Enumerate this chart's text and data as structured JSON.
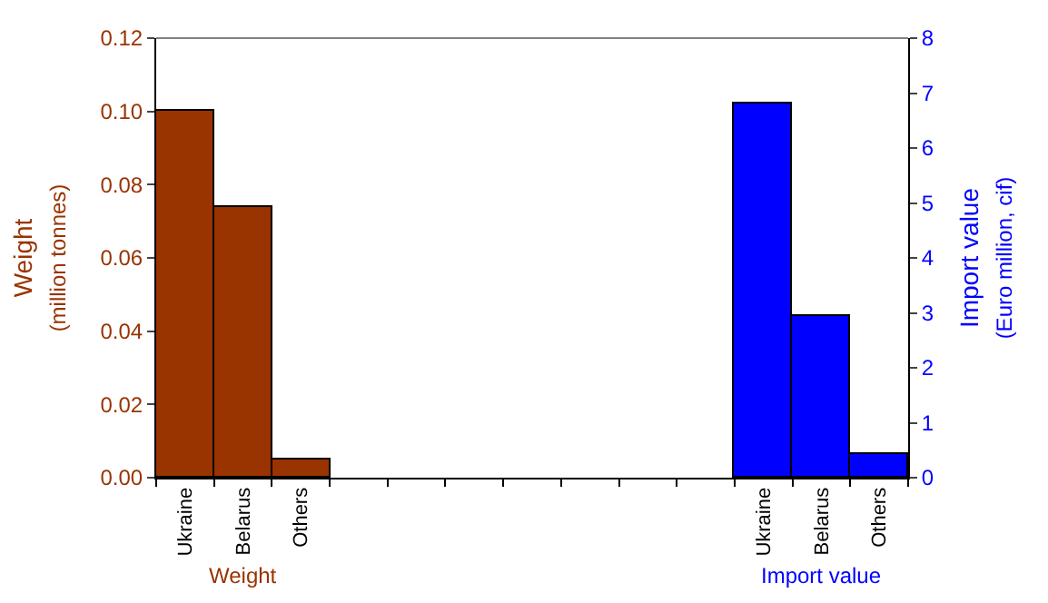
{
  "chart_data": {
    "type": "bar",
    "categories": [
      "Ukraine",
      "Belarus",
      "Others",
      null,
      null,
      null,
      null,
      null,
      null,
      null,
      "Ukraine",
      "Belarus",
      "Others"
    ],
    "series": [
      {
        "name": "Weight",
        "color": "#993300",
        "values": [
          0.1,
          0.074,
          0.005,
          null,
          null,
          null,
          null,
          null,
          null,
          null,
          null,
          null,
          null
        ]
      },
      {
        "name": "Import value",
        "color": "#0000ff",
        "axis": "y2",
        "values": [
          null,
          null,
          null,
          null,
          null,
          null,
          null,
          null,
          null,
          null,
          6.8,
          2.95,
          0.43
        ]
      }
    ],
    "ylabel": "Weight\n(million tonnes)",
    "y2label": "Import value\n(Euro million, cif)",
    "ylim": [
      0,
      0.12
    ],
    "yticks": [
      {
        "value": 0,
        "label": "0.00"
      },
      {
        "value": 0.02,
        "label": "0.02"
      },
      {
        "value": 0.04,
        "label": "0.04"
      },
      {
        "value": 0.06,
        "label": "0.06"
      },
      {
        "value": 0.08,
        "label": "0.08"
      },
      {
        "value": 0.1,
        "label": "0.10"
      },
      {
        "value": 0.12,
        "label": "0.12"
      }
    ],
    "y2lim": [
      0,
      8
    ],
    "y2ticks": [
      0,
      1,
      2,
      3,
      4,
      5,
      6,
      7,
      8
    ],
    "legend": false
  }
}
